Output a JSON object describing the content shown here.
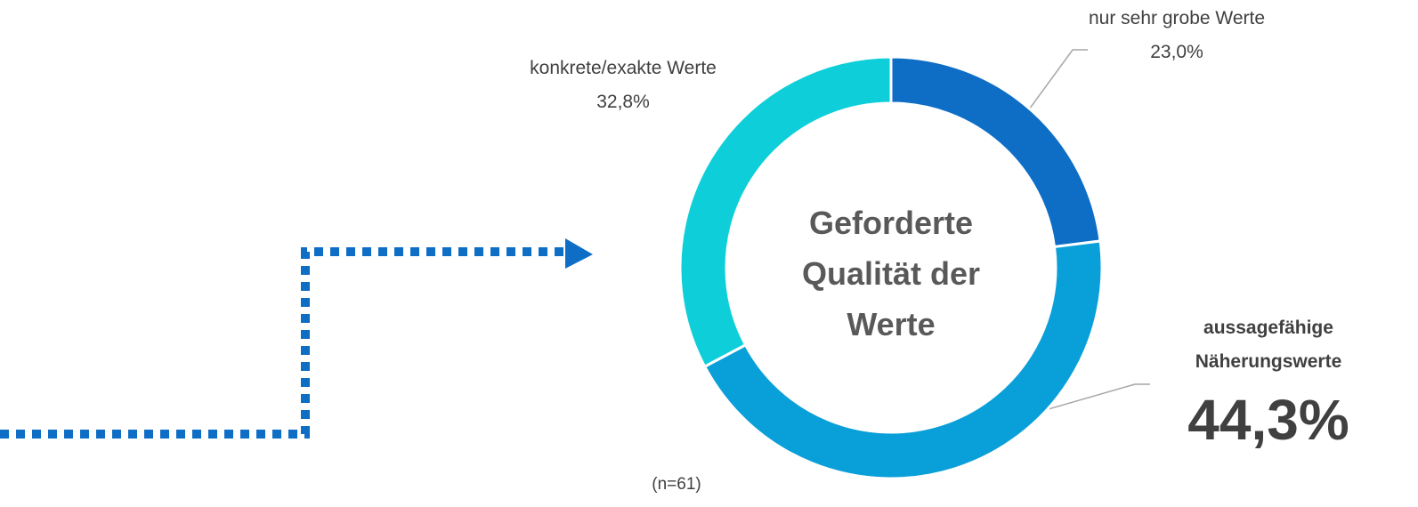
{
  "chart_data": {
    "type": "pie",
    "center_title": "Geforderte Qualität der Werte",
    "categories": [
      "nur sehr grobe Werte",
      "aussagefähige Näherungswerte",
      "konkrete/exakte Werte"
    ],
    "values": [
      23.0,
      44.3,
      32.8
    ],
    "value_labels": [
      "23,0%",
      "44,3%",
      "32,8%"
    ],
    "colors": [
      "#0e6ec6",
      "#099fd9",
      "#0ecfd9"
    ],
    "note": "(n=61)"
  }
}
